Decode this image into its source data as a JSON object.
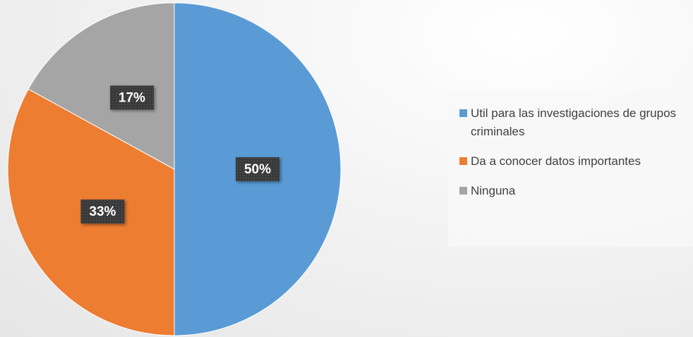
{
  "chart_data": {
    "type": "pie",
    "categories": [
      "Util para las investigaciones de grupos criminales",
      "Da a conocer datos importantes",
      "Ninguna"
    ],
    "values": [
      50,
      33,
      17
    ],
    "value_labels": [
      "50%",
      "33%",
      "17%"
    ],
    "colors": [
      "#5b9bd5",
      "#ed7d31",
      "#a5a5a5"
    ],
    "legend": "right"
  }
}
